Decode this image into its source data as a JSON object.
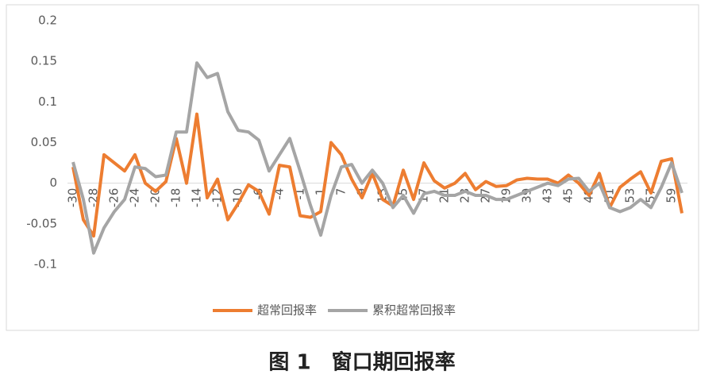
{
  "chart_data": {
    "type": "line",
    "categories": [
      "-30",
      null,
      "-28",
      null,
      "-26",
      null,
      "-24",
      null,
      "-20",
      null,
      "-18",
      null,
      "-14",
      null,
      "-12",
      null,
      "-10",
      null,
      "-6",
      null,
      "-4",
      null,
      "-1",
      null,
      "1",
      null,
      "7",
      null,
      "9",
      null,
      "13",
      null,
      "15",
      null,
      "17",
      null,
      "21",
      null,
      "23",
      null,
      "27",
      null,
      "29",
      null,
      "39",
      null,
      "43",
      null,
      "45",
      null,
      "49",
      null,
      "51",
      null,
      "53",
      null,
      "57",
      null,
      "59",
      null
    ],
    "series": [
      {
        "name": "超常回报率",
        "color": "#ed7d31",
        "values": [
          0.02,
          -0.045,
          -0.065,
          0.035,
          0.025,
          0.015,
          0.035,
          0.0,
          -0.01,
          0.002,
          0.055,
          0.0,
          0.085,
          -0.018,
          0.005,
          -0.045,
          -0.025,
          -0.002,
          -0.01,
          -0.038,
          0.022,
          0.02,
          -0.04,
          -0.042,
          -0.035,
          0.05,
          0.035,
          0.005,
          -0.018,
          0.012,
          -0.02,
          -0.028,
          0.016,
          -0.02,
          0.025,
          0.003,
          -0.006,
          0.0,
          0.012,
          -0.008,
          0.002,
          -0.004,
          -0.003,
          0.004,
          0.006,
          0.005,
          0.005,
          0.0,
          0.01,
          0.0,
          -0.015,
          0.012,
          -0.03,
          -0.005,
          0.005,
          0.014,
          -0.012,
          0.027,
          0.03,
          -0.037
        ]
      },
      {
        "name": "累积超常回报率",
        "color": "#a5a5a5",
        "values": [
          0.026,
          -0.02,
          -0.086,
          -0.055,
          -0.035,
          -0.02,
          0.02,
          0.018,
          0.008,
          0.01,
          0.063,
          0.063,
          0.148,
          0.13,
          0.135,
          0.088,
          0.065,
          0.063,
          0.053,
          0.015,
          0.035,
          0.055,
          0.015,
          -0.027,
          -0.064,
          -0.015,
          0.02,
          0.023,
          0.0,
          0.016,
          0.0,
          -0.03,
          -0.015,
          -0.037,
          -0.013,
          -0.01,
          -0.015,
          -0.015,
          -0.01,
          -0.015,
          -0.015,
          -0.02,
          -0.02,
          -0.015,
          -0.01,
          -0.005,
          0.0,
          -0.003,
          0.005,
          0.006,
          -0.01,
          0.0,
          -0.03,
          -0.035,
          -0.03,
          -0.02,
          -0.03,
          -0.005,
          0.025,
          -0.012
        ]
      }
    ],
    "ylim": [
      -0.1,
      0.2
    ],
    "yticks": [
      -0.1,
      -0.05,
      0,
      0.05,
      0.1,
      0.15,
      0.2
    ],
    "grid": false,
    "legend": "bottom"
  },
  "caption": "图 1　窗口期回报率"
}
